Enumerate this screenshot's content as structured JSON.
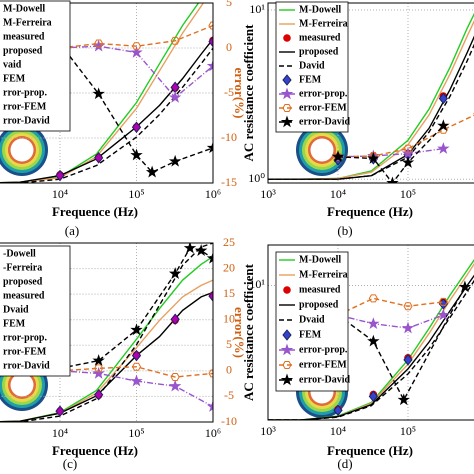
{
  "chart_data": [
    {
      "type": "line",
      "xlabel": "Frequence (Hz)",
      "y2label": "error(%)",
      "caption": "(a)",
      "xscale": "log",
      "yscale": "log",
      "xlim": [
        1000,
        1000000
      ],
      "xticks": [
        {
          "value": 10000,
          "label": "10⁴"
        },
        {
          "value": 100000,
          "label": "10⁵"
        },
        {
          "value": 1000000,
          "label": "10⁶"
        }
      ],
      "ylim": [
        1,
        10
      ],
      "y2lim": [
        -15,
        5
      ],
      "y2ticks": [
        5,
        0,
        -5,
        -10,
        -15
      ],
      "grid": true,
      "legend": "upper left",
      "series": [
        {
          "name": "M-Dowell",
          "color": "#22cc22",
          "style": "solid",
          "x": [
            1000,
            3000,
            10000,
            30000,
            100000,
            200000,
            400000,
            700000,
            1000000
          ],
          "values": [
            1.0,
            1.01,
            1.08,
            1.45,
            2.8,
            4.6,
            7.5,
            10.5,
            13
          ]
        },
        {
          "name": "M-Ferreira",
          "color": "#e8a060",
          "style": "solid",
          "x": [
            1000,
            3000,
            10000,
            30000,
            100000,
            200000,
            400000,
            700000,
            1000000
          ],
          "values": [
            1.0,
            1.01,
            1.07,
            1.4,
            2.6,
            4.2,
            6.8,
            9.6,
            12
          ]
        },
        {
          "name": "measured",
          "color": "#dd0000",
          "style": "none",
          "marker": "circle",
          "x": [
            10000,
            32000,
            100000,
            320000,
            1000000
          ],
          "values": [
            1.11,
            1.39,
            2.05,
            3.37,
            6.2
          ]
        },
        {
          "name": "proposed",
          "color": "#000000",
          "style": "solid",
          "x": [
            1000,
            3000,
            10000,
            30000,
            100000,
            200000,
            400000,
            700000,
            1000000
          ],
          "values": [
            1.0,
            1.01,
            1.1,
            1.36,
            2.05,
            2.7,
            3.8,
            5.2,
            6.3
          ]
        },
        {
          "name": "vaid",
          "color": "#000000",
          "style": "dashed",
          "x": [
            1000,
            3000,
            10000,
            30000,
            100000,
            200000,
            400000,
            700000,
            1000000
          ],
          "values": [
            1.0,
            1.0,
            1.05,
            1.25,
            1.8,
            2.4,
            3.4,
            4.6,
            5.6
          ]
        },
        {
          "name": "FEM",
          "color": "#b000b0",
          "style": "none",
          "marker": "diamond",
          "x": [
            10000,
            32000,
            100000,
            320000,
            1000000
          ],
          "values": [
            1.1,
            1.38,
            2.04,
            3.4,
            6.1
          ]
        },
        {
          "name": "rror-prop.",
          "color": "#9955cc",
          "style": "dashdot",
          "marker": "star",
          "axis": "y2",
          "x": [
            10000,
            32000,
            100000,
            320000,
            1000000
          ],
          "values": [
            0,
            0.2,
            -0.5,
            -5.5,
            -2
          ]
        },
        {
          "name": "rror-FEM",
          "color": "#e07020",
          "style": "dashed",
          "marker": "hexagon",
          "axis": "y2",
          "x": [
            10000,
            32000,
            100000,
            320000,
            1000000
          ],
          "values": [
            0,
            0.5,
            0.2,
            0.8,
            2.5
          ]
        },
        {
          "name": "rror-David",
          "color": "#000000",
          "style": "dashed",
          "marker": "star",
          "axis": "y2",
          "x": [
            10000,
            32000,
            100000,
            160000,
            320000,
            1000000
          ],
          "values": [
            0.5,
            -5.1,
            -11.9,
            -13.8,
            -12.6,
            -11.1
          ]
        }
      ]
    },
    {
      "type": "line",
      "xlabel": "Frequence (Hz)",
      "ylabel": "AC resistance coefficient",
      "caption": "(b)",
      "xscale": "log",
      "yscale": "log",
      "xlim": [
        1000,
        1000000
      ],
      "xticks": [
        {
          "value": 1000,
          "label": "10³"
        },
        {
          "value": 10000,
          "label": "10⁴"
        },
        {
          "value": 100000,
          "label": "10⁵"
        }
      ],
      "ylim": [
        0.95,
        11
      ],
      "yticks": [
        {
          "value": 1,
          "label": "10⁰"
        },
        {
          "value": 10,
          "label": "10¹"
        }
      ],
      "y2lim": [
        -2,
        20
      ],
      "grid": true,
      "legend": "upper left",
      "series": [
        {
          "name": "M-Dowell",
          "color": "#22cc22",
          "style": "solid",
          "x": [
            1000,
            3000,
            10000,
            30000,
            100000,
            200000,
            400000,
            700000,
            1000000
          ],
          "values": [
            1,
            1,
            1.01,
            1.12,
            1.7,
            2.6,
            4.6,
            7.8,
            10.5
          ]
        },
        {
          "name": "M-Ferreira",
          "color": "#e8a060",
          "style": "solid",
          "x": [
            1000,
            3000,
            10000,
            30000,
            100000,
            200000,
            400000,
            700000,
            1000000
          ],
          "values": [
            1,
            1,
            1.01,
            1.1,
            1.6,
            2.4,
            4.2,
            7,
            9.6
          ]
        },
        {
          "name": "measured",
          "color": "#dd0000",
          "style": "none",
          "marker": "circle",
          "x": [
            10000,
            32000,
            100000,
            320000
          ],
          "values": [
            1.35,
            1.36,
            1.42,
            3.1
          ]
        },
        {
          "name": "proposed",
          "color": "#000000",
          "style": "solid",
          "x": [
            1000,
            3000,
            10000,
            30000,
            100000,
            200000,
            400000,
            700000,
            1000000
          ],
          "values": [
            1,
            1,
            1.0,
            1.05,
            1.4,
            2.0,
            3.4,
            5.6,
            7.8
          ]
        },
        {
          "name": "David",
          "color": "#000000",
          "style": "dashed",
          "x": [
            1000,
            3000,
            10000,
            30000,
            100000,
            200000,
            400000,
            700000,
            1000000
          ],
          "values": [
            1,
            1,
            1.0,
            1.05,
            1.35,
            1.9,
            3.1,
            5.0,
            7
          ]
        },
        {
          "name": "FEM",
          "color": "#3344cc",
          "style": "none",
          "marker": "diamond",
          "x": [
            10000,
            32000,
            100000,
            320000
          ],
          "values": [
            1.3,
            1.32,
            1.4,
            3.0
          ]
        },
        {
          "name": "error-prop.",
          "color": "#9955cc",
          "style": "dashdot",
          "marker": "star",
          "axis": "y2",
          "x": [
            10000,
            32000,
            100000,
            320000
          ],
          "values": [
            1.2,
            1.3,
            1.6,
            2.2
          ]
        },
        {
          "name": "error-FEM",
          "color": "#e07020",
          "style": "dashed",
          "marker": "hexagon",
          "axis": "y2",
          "x": [
            10000,
            32000,
            100000,
            320000,
            1000000
          ],
          "values": [
            1.2,
            1.3,
            2.2,
            4.5,
            6.5
          ]
        },
        {
          "name": "error-David",
          "color": "#000000",
          "style": "dashed",
          "marker": "star",
          "axis": "y2",
          "x": [
            10000,
            32000,
            60000,
            100000,
            320000
          ],
          "values": [
            1.2,
            1.0,
            -2.0,
            0.5,
            5
          ]
        }
      ]
    },
    {
      "type": "line",
      "xlabel": "Frequence (Hz)",
      "y2label": "error(%)",
      "caption": "(c)",
      "xscale": "log",
      "yscale": "log",
      "xlim": [
        1000,
        1000000
      ],
      "xticks": [
        {
          "value": 10000,
          "label": "10⁴"
        },
        {
          "value": 100000,
          "label": "10⁵"
        },
        {
          "value": 1000000,
          "label": "10⁶"
        }
      ],
      "ylim": [
        1,
        10
      ],
      "y2lim": [
        -10,
        25
      ],
      "y2ticks": [
        25,
        20,
        15,
        10,
        5,
        0,
        -5,
        -10
      ],
      "grid": true,
      "legend": "upper left",
      "series": [
        {
          "name": "-Dowell",
          "color": "#22cc22",
          "style": "solid",
          "x": [
            1000,
            3000,
            10000,
            30000,
            100000,
            200000,
            400000,
            700000,
            1000000
          ],
          "values": [
            1,
            1.01,
            1.13,
            1.5,
            2.9,
            4.3,
            6.2,
            7.6,
            8.4
          ]
        },
        {
          "name": "-Ferreira",
          "color": "#e8a060",
          "style": "solid",
          "x": [
            1000,
            3000,
            10000,
            30000,
            100000,
            200000,
            400000,
            700000,
            1000000
          ],
          "values": [
            1,
            1.01,
            1.12,
            1.45,
            2.6,
            3.7,
            5.0,
            5.8,
            6.2
          ]
        },
        {
          "name": "proposed",
          "color": "#000000",
          "style": "solid",
          "x": [
            1000,
            3000,
            10000,
            30000,
            100000,
            200000,
            400000,
            700000,
            1000000
          ],
          "values": [
            1,
            1.01,
            1.12,
            1.4,
            2.35,
            3.0,
            4.2,
            5.0,
            5.3
          ]
        },
        {
          "name": "measured",
          "color": "#dd0000",
          "style": "none",
          "marker": "circle",
          "x": [
            10000,
            32000,
            100000,
            320000,
            1000000
          ],
          "values": [
            1.15,
            1.41,
            2.37,
            3.7,
            5.1
          ]
        },
        {
          "name": "Dvaid",
          "color": "#000000",
          "style": "dashed",
          "x": [
            1000,
            3000,
            10000,
            30000,
            100000,
            200000,
            400000,
            700000,
            1000000
          ],
          "values": [
            1,
            1,
            1.08,
            1.35,
            2.7,
            4.5,
            7.5,
            9.5,
            10
          ]
        },
        {
          "name": "FEM",
          "color": "#b000b0",
          "style": "none",
          "marker": "diamond",
          "x": [
            10000,
            32000,
            100000,
            320000,
            1000000
          ],
          "values": [
            1.15,
            1.42,
            2.35,
            3.75,
            5.05
          ]
        },
        {
          "name": "rror-prop.",
          "color": "#9955cc",
          "style": "dashdot",
          "marker": "star",
          "axis": "y2",
          "x": [
            10000,
            32000,
            100000,
            320000,
            1000000
          ],
          "values": [
            0,
            -0.5,
            -2,
            -3,
            -7
          ]
        },
        {
          "name": "rror-FEM",
          "color": "#e07020",
          "style": "dashed",
          "marker": "hexagon",
          "axis": "y2",
          "x": [
            10000,
            32000,
            100000,
            320000,
            1000000
          ],
          "values": [
            0,
            0.5,
            0.8,
            -1.2,
            -0.5
          ]
        },
        {
          "name": "rror-David",
          "color": "#000000",
          "style": "dashed",
          "marker": "star",
          "axis": "y2",
          "x": [
            10000,
            32000,
            100000,
            320000,
            500000,
            700000,
            1000000
          ],
          "values": [
            0.5,
            2,
            8,
            19,
            24,
            23.5,
            22
          ]
        }
      ]
    },
    {
      "type": "line",
      "xlabel": "Frequence (Hz)",
      "ylabel": "AC resistance coefficient",
      "caption": "(d)",
      "xscale": "log",
      "yscale": "log",
      "xlim": [
        1000,
        1000000
      ],
      "xticks": [
        {
          "value": 1000,
          "label": "10³"
        },
        {
          "value": 10000,
          "label": "10⁴"
        },
        {
          "value": 100000,
          "label": "10⁵"
        }
      ],
      "ylim": [
        1,
        20
      ],
      "yticks": [
        {
          "value": 10,
          "label": "10¹"
        }
      ],
      "y2lim": [
        -15,
        5
      ],
      "grid": true,
      "legend": "upper left",
      "series": [
        {
          "name": "M-Dowell",
          "color": "#22cc22",
          "style": "solid",
          "x": [
            1000,
            3000,
            10000,
            30000,
            100000,
            200000,
            400000,
            700000,
            1000000
          ],
          "values": [
            1,
            1,
            1.07,
            1.35,
            2.8,
            4.8,
            8.5,
            13,
            17
          ]
        },
        {
          "name": "M-Ferreira",
          "color": "#e8a060",
          "style": "solid",
          "x": [
            1000,
            3000,
            10000,
            30000,
            100000,
            200000,
            400000,
            700000,
            1000000
          ],
          "values": [
            1,
            1,
            1.06,
            1.33,
            2.6,
            4.4,
            7.8,
            12,
            16
          ]
        },
        {
          "name": "measured",
          "color": "#dd0000",
          "style": "none",
          "marker": "circle",
          "x": [
            10000,
            32000,
            100000,
            320000
          ],
          "values": [
            1.2,
            1.55,
            2.9,
            7.5
          ]
        },
        {
          "name": "proposed",
          "color": "#000000",
          "style": "solid",
          "x": [
            1000,
            3000,
            10000,
            30000,
            100000,
            200000,
            400000,
            700000,
            1000000
          ],
          "values": [
            1,
            1,
            1.06,
            1.3,
            2.4,
            3.8,
            6.5,
            10,
            13
          ]
        },
        {
          "name": "Dvaid",
          "color": "#000000",
          "style": "dashed",
          "x": [
            1000,
            3000,
            10000,
            30000,
            100000,
            200000,
            400000,
            700000,
            1000000
          ],
          "values": [
            1,
            1,
            1.05,
            1.28,
            2.2,
            3.4,
            5.8,
            9,
            12
          ]
        },
        {
          "name": "FEM",
          "color": "#3344cc",
          "style": "none",
          "marker": "diamond",
          "x": [
            10000,
            32000,
            100000,
            320000
          ],
          "values": [
            1.18,
            1.5,
            2.8,
            7.3
          ]
        },
        {
          "name": "error-prop.",
          "color": "#9955cc",
          "style": "dashdot",
          "marker": "star",
          "axis": "y2",
          "x": [
            10000,
            32000,
            100000,
            320000
          ],
          "values": [
            -3,
            -4,
            -4.5,
            -3
          ]
        },
        {
          "name": "error-FEM",
          "color": "#e07020",
          "style": "dashed",
          "marker": "hexagon",
          "axis": "y2",
          "x": [
            10000,
            32000,
            100000,
            320000
          ],
          "values": [
            -3,
            -1.1,
            -2,
            -1.5
          ]
        },
        {
          "name": "error-David",
          "color": "#000000",
          "style": "dashed",
          "marker": "star",
          "axis": "y2",
          "x": [
            10000,
            32000,
            87000,
            650000
          ],
          "values": [
            -3,
            -6,
            -12.7,
            0.2
          ]
        }
      ]
    }
  ]
}
